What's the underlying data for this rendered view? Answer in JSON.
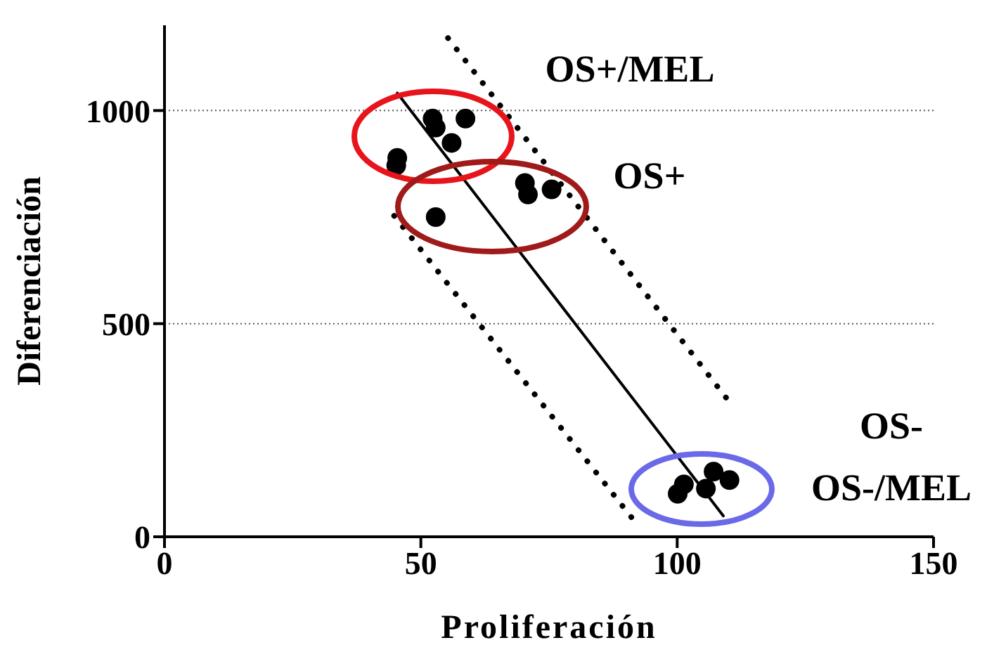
{
  "chart_data": {
    "type": "scatter",
    "xlabel": "Proliferación",
    "ylabel": "Diferenciación",
    "xlim": [
      0,
      150
    ],
    "ylim": [
      0,
      1200
    ],
    "xticks": [
      0,
      50,
      100,
      150
    ],
    "yticks": [
      0,
      500,
      1000
    ],
    "grid": "y",
    "legend": false,
    "marker": "circle",
    "series": [
      {
        "color": "#000000",
        "x": [
          45.4,
          45.2,
          52.3,
          52.9,
          56,
          58.7,
          52.9,
          70.3,
          70.9,
          75.5,
          100.1,
          101.3,
          105.6,
          107.1,
          110.2
        ],
        "values": [
          889,
          871,
          981,
          960,
          924,
          981,
          750,
          830,
          803,
          815,
          101,
          123,
          113,
          153,
          133
        ]
      },
      {
        "type": "line",
        "color": "#000000",
        "line_style": "solid",
        "marker": "none",
        "x": [
          45.4,
          109
        ],
        "values": [
          1041,
          49
        ]
      },
      {
        "type": "line",
        "color": "#000000",
        "line_style": "dotted",
        "marker": "none",
        "x": [
          55.3,
          110.2
        ],
        "values": [
          1170,
          316
        ]
      },
      {
        "type": "line",
        "color": "#000000",
        "line_style": "dotted",
        "marker": "none",
        "x": [
          44.8,
          92.1
        ],
        "values": [
          753,
          30
        ]
      }
    ],
    "annotations": [
      "OS+/MEL",
      "OS+",
      "OS-",
      "OS-/MEL"
    ]
  }
}
